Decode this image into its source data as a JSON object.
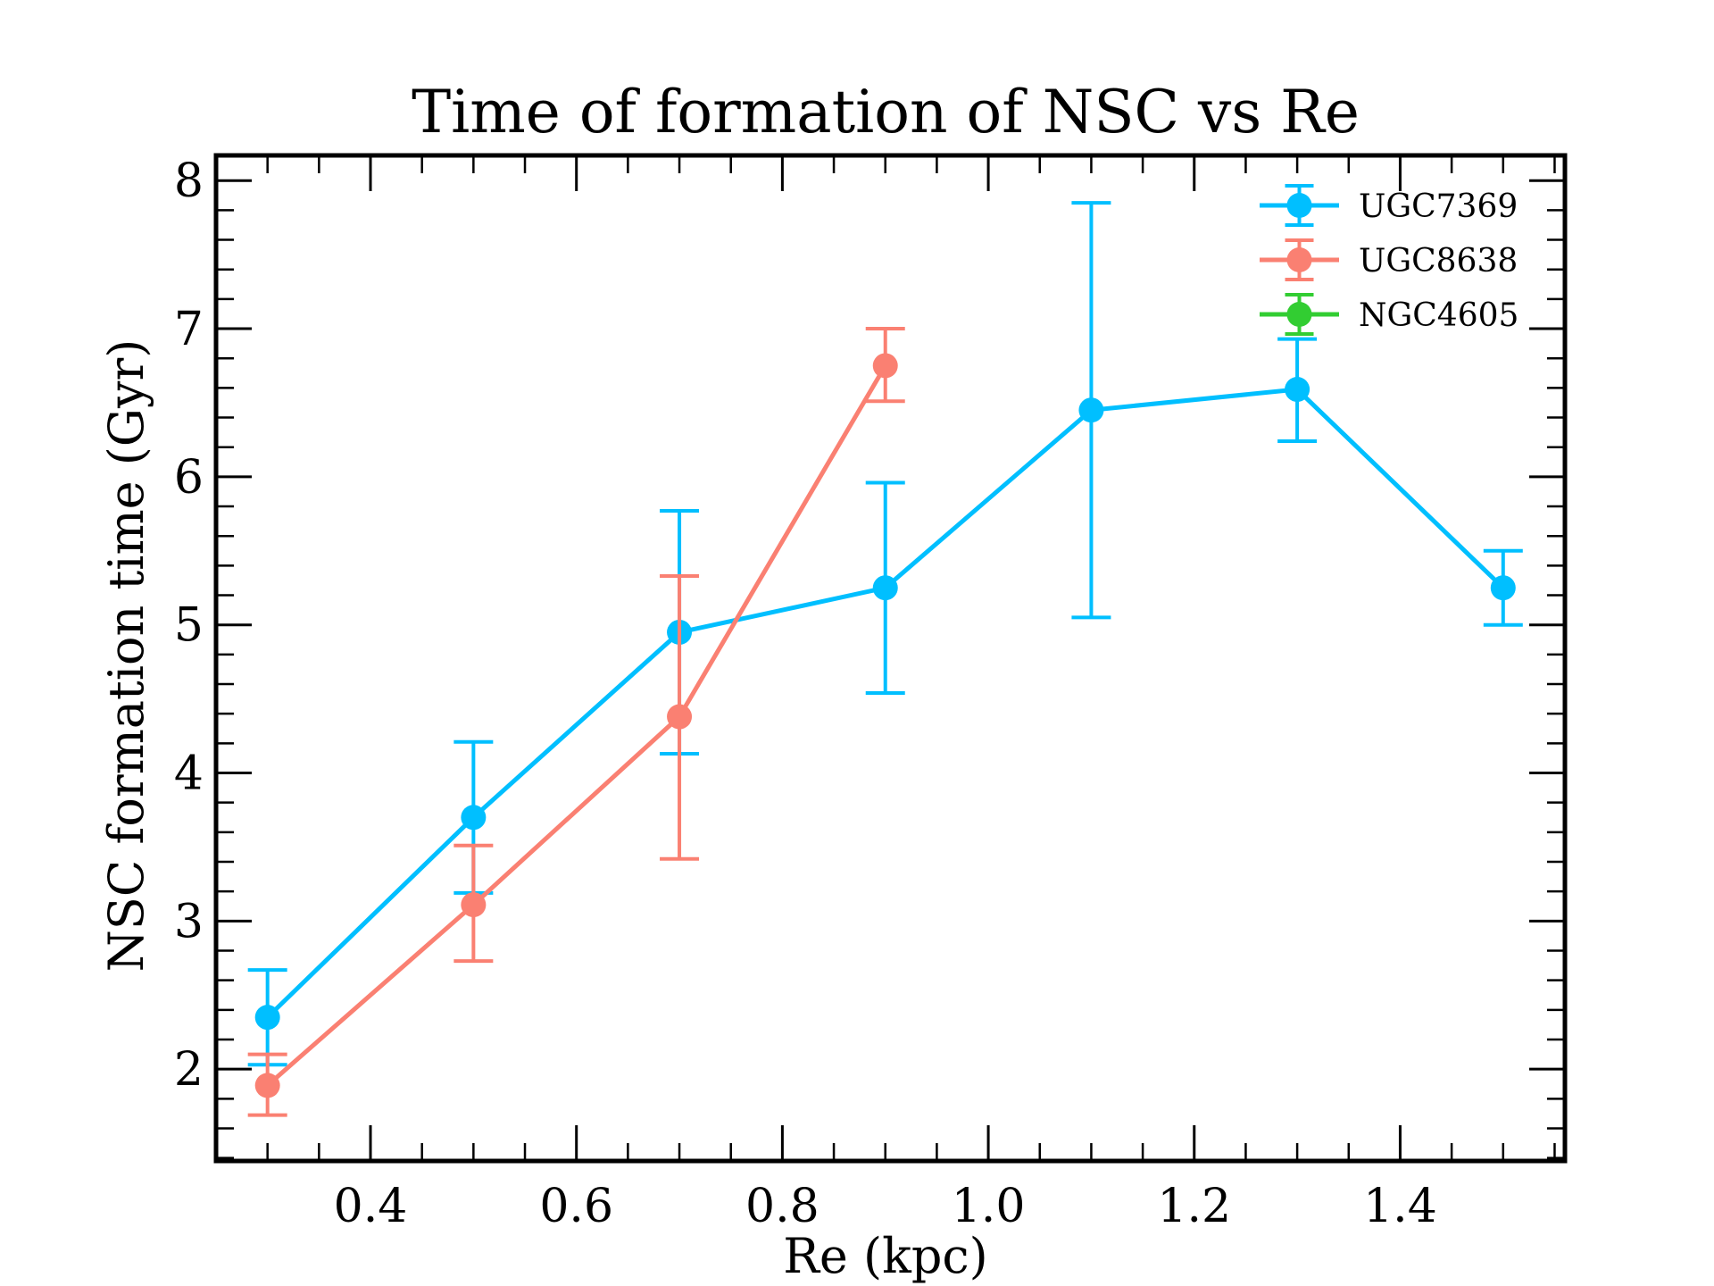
{
  "chart_data": {
    "type": "line",
    "title": "Time of formation of NSC vs Re",
    "xlabel": "Re (kpc)",
    "ylabel": "NSC formation time (Gyr)",
    "xlim": [
      0.25,
      1.56
    ],
    "ylim": [
      1.38,
      8.17
    ],
    "x_ticks": [
      0.4,
      0.6,
      0.8,
      1.0,
      1.2,
      1.4
    ],
    "x_tick_labels": [
      "0.4",
      "0.6",
      "0.8",
      "1.0",
      "1.2",
      "1.4"
    ],
    "y_ticks": [
      2,
      3,
      4,
      5,
      6,
      7,
      8
    ],
    "y_tick_labels": [
      "2",
      "3",
      "4",
      "5",
      "6",
      "7",
      "8"
    ],
    "grid": false,
    "legend_position": "top-right",
    "series": [
      {
        "name": "UGC7369",
        "color": "#00bfff",
        "x": [
          0.3,
          0.5,
          0.7,
          0.9,
          1.1,
          1.3,
          1.5
        ],
        "y": [
          2.35,
          3.7,
          4.95,
          5.25,
          6.45,
          6.59,
          5.25
        ],
        "y_low": [
          2.03,
          3.19,
          4.13,
          4.54,
          5.05,
          6.24,
          5.0
        ],
        "y_high": [
          2.67,
          4.21,
          5.77,
          5.96,
          7.85,
          6.93,
          5.5
        ]
      },
      {
        "name": "UGC8638",
        "color": "#fa8072",
        "x": [
          0.3,
          0.5,
          0.7,
          0.9
        ],
        "y": [
          1.89,
          3.11,
          4.38,
          6.75
        ],
        "y_low": [
          1.69,
          2.73,
          3.42,
          6.51
        ],
        "y_high": [
          2.1,
          3.51,
          5.33,
          7.0
        ]
      },
      {
        "name": "NGC4605",
        "color": "#32cd32",
        "x": [],
        "y": [],
        "y_low": [],
        "y_high": []
      }
    ]
  }
}
